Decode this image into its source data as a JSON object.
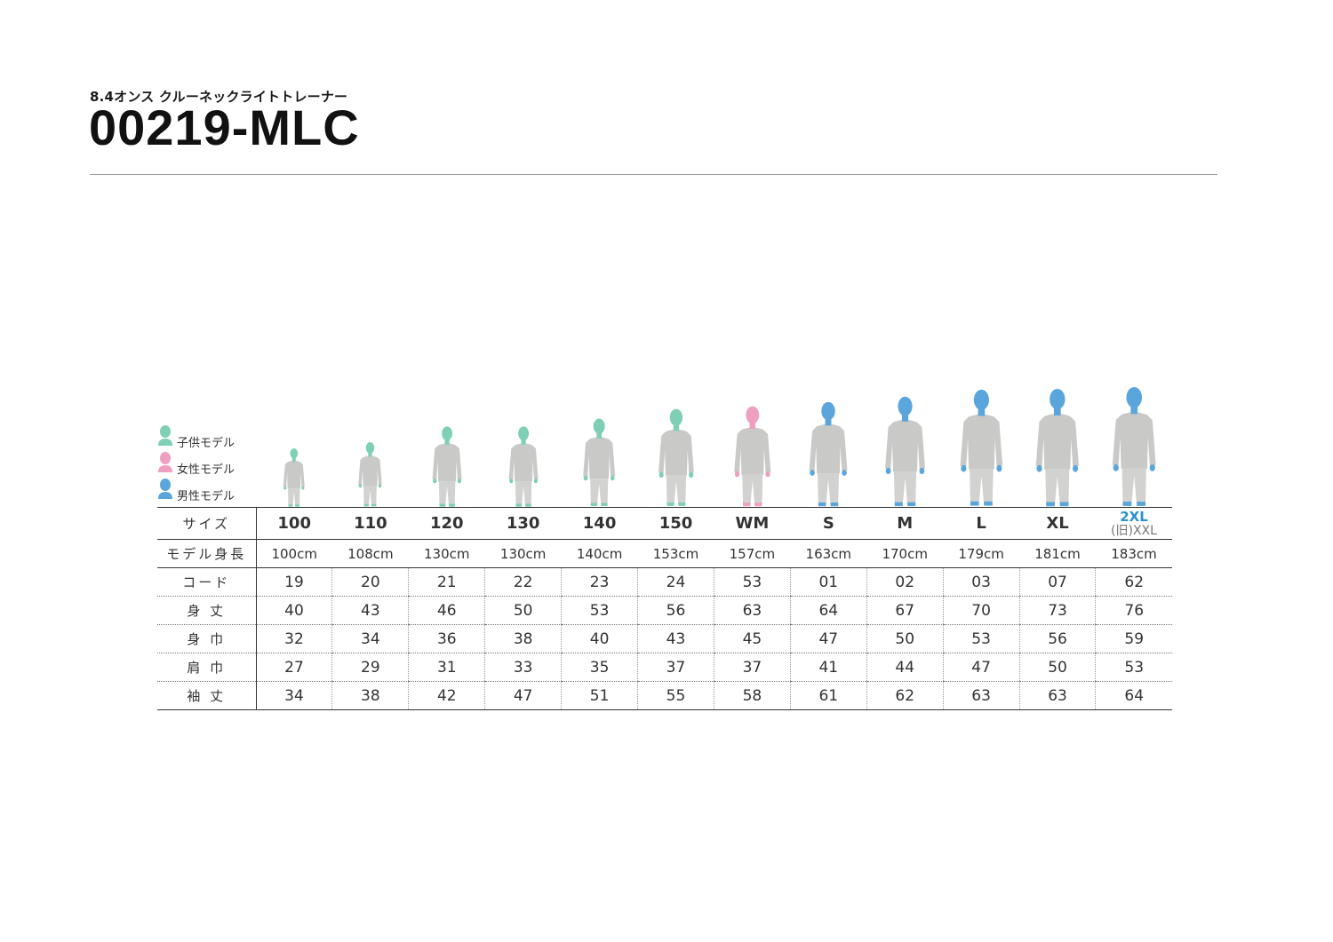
{
  "header": {
    "subtitle": "8.4オンス クルーネックライトトレーナー",
    "title": "00219-MLC"
  },
  "legend": [
    {
      "label": "子供モデル",
      "color": "#7fcfb7"
    },
    {
      "label": "女性モデル",
      "color": "#ef9fc2"
    },
    {
      "label": "男性モデル",
      "color": "#5aa6dc"
    }
  ],
  "colors": {
    "kid": "#2bb8a3",
    "woman": "#e8609a",
    "man": "#2b8fd0",
    "shirt": "#c9c9c7"
  },
  "table": {
    "row_labels": {
      "size": "サイズ",
      "model_height": "モデル身長",
      "code": "コード",
      "length": "身 丈",
      "width": "身 巾",
      "shoulder": "肩 巾",
      "sleeve": "袖 丈"
    },
    "sizes": [
      {
        "size": "100",
        "height": "100cm",
        "code": "19",
        "group": "kid",
        "length": "40",
        "width": "32",
        "shoulder": "27",
        "sleeve": "34"
      },
      {
        "size": "110",
        "height": "108cm",
        "code": "20",
        "group": "kid",
        "length": "43",
        "width": "34",
        "shoulder": "29",
        "sleeve": "38"
      },
      {
        "size": "120",
        "height": "130cm",
        "code": "21",
        "group": "kid",
        "length": "46",
        "width": "36",
        "shoulder": "31",
        "sleeve": "42"
      },
      {
        "size": "130",
        "height": "130cm",
        "code": "22",
        "group": "kid",
        "length": "50",
        "width": "38",
        "shoulder": "33",
        "sleeve": "47"
      },
      {
        "size": "140",
        "height": "140cm",
        "code": "23",
        "group": "kid",
        "length": "53",
        "width": "40",
        "shoulder": "35",
        "sleeve": "51"
      },
      {
        "size": "150",
        "height": "153cm",
        "code": "24",
        "group": "kid",
        "length": "56",
        "width": "43",
        "shoulder": "37",
        "sleeve": "55"
      },
      {
        "size": "WM",
        "height": "157cm",
        "code": "53",
        "group": "woman",
        "length": "63",
        "width": "45",
        "shoulder": "37",
        "sleeve": "58"
      },
      {
        "size": "S",
        "height": "163cm",
        "code": "01",
        "group": "man",
        "length": "64",
        "width": "47",
        "shoulder": "41",
        "sleeve": "61"
      },
      {
        "size": "M",
        "height": "170cm",
        "code": "02",
        "group": "man",
        "length": "67",
        "width": "50",
        "shoulder": "44",
        "sleeve": "62"
      },
      {
        "size": "L",
        "height": "179cm",
        "code": "03",
        "group": "man",
        "length": "70",
        "width": "53",
        "shoulder": "47",
        "sleeve": "63"
      },
      {
        "size": "XL",
        "height": "181cm",
        "code": "07",
        "group": "man",
        "length": "73",
        "width": "56",
        "shoulder": "50",
        "sleeve": "63"
      },
      {
        "size": "2XL",
        "size_old": "(旧)XXL",
        "height": "183cm",
        "code": "62",
        "group": "man",
        "length": "76",
        "width": "59",
        "shoulder": "53",
        "sleeve": "64"
      }
    ]
  }
}
